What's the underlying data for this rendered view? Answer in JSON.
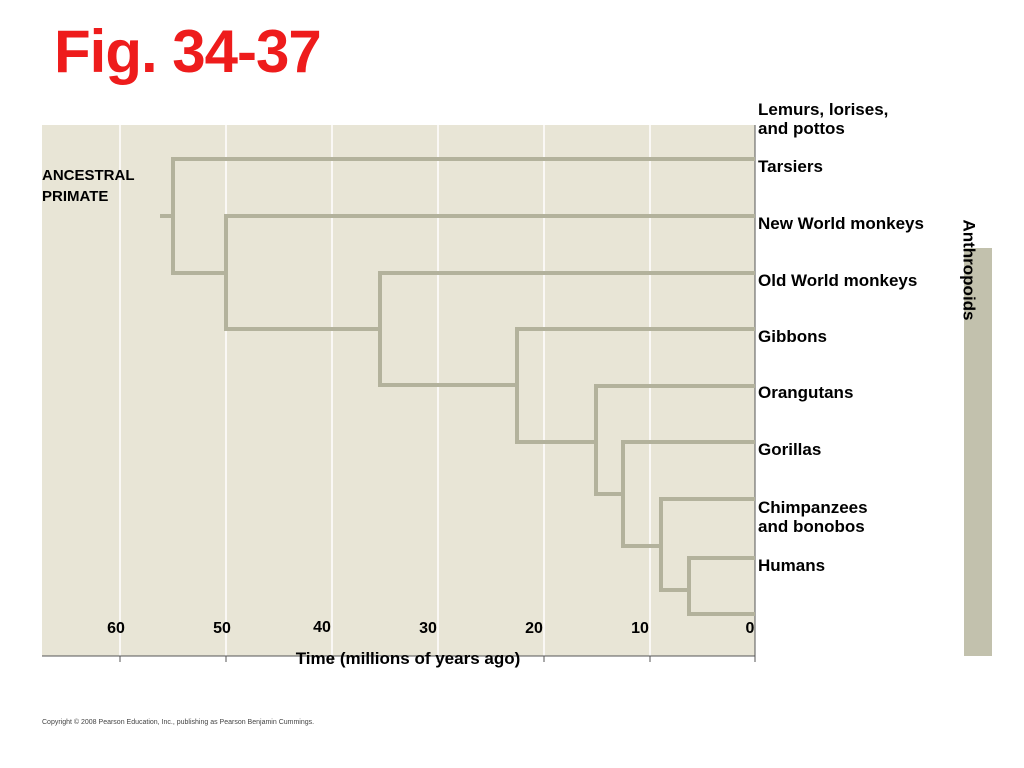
{
  "title": "Fig. 34-37",
  "ancestor": {
    "line1": "ANCESTRAL",
    "line2": "PRIMATE"
  },
  "axis": {
    "label": "Time (millions of years ago)",
    "ticks": [
      "60",
      "50",
      "40",
      "30",
      "20",
      "10",
      "0"
    ]
  },
  "taxa": [
    {
      "line1": "Lemurs, lorises,",
      "line2": "and pottos"
    },
    {
      "line1": "Tarsiers"
    },
    {
      "line1": "New World monkeys"
    },
    {
      "line1": "Old World monkeys"
    },
    {
      "line1": "Gibbons"
    },
    {
      "line1": "Orangutans"
    },
    {
      "line1": "Gorillas"
    },
    {
      "line1": "Chimpanzees",
      "line2": "and bonobos"
    },
    {
      "line1": "Humans"
    }
  ],
  "bracket_label": "Anthropoids",
  "copyright": "Copyright © 2008 Pearson Education, Inc., publishing as Pearson Benjamin Cummings.",
  "colors": {
    "title": "#ee1c1c",
    "panel": "#e8e5d6",
    "branch": "#b3b29c",
    "bracket": "#c2c1ad",
    "axis": "#555555"
  }
}
